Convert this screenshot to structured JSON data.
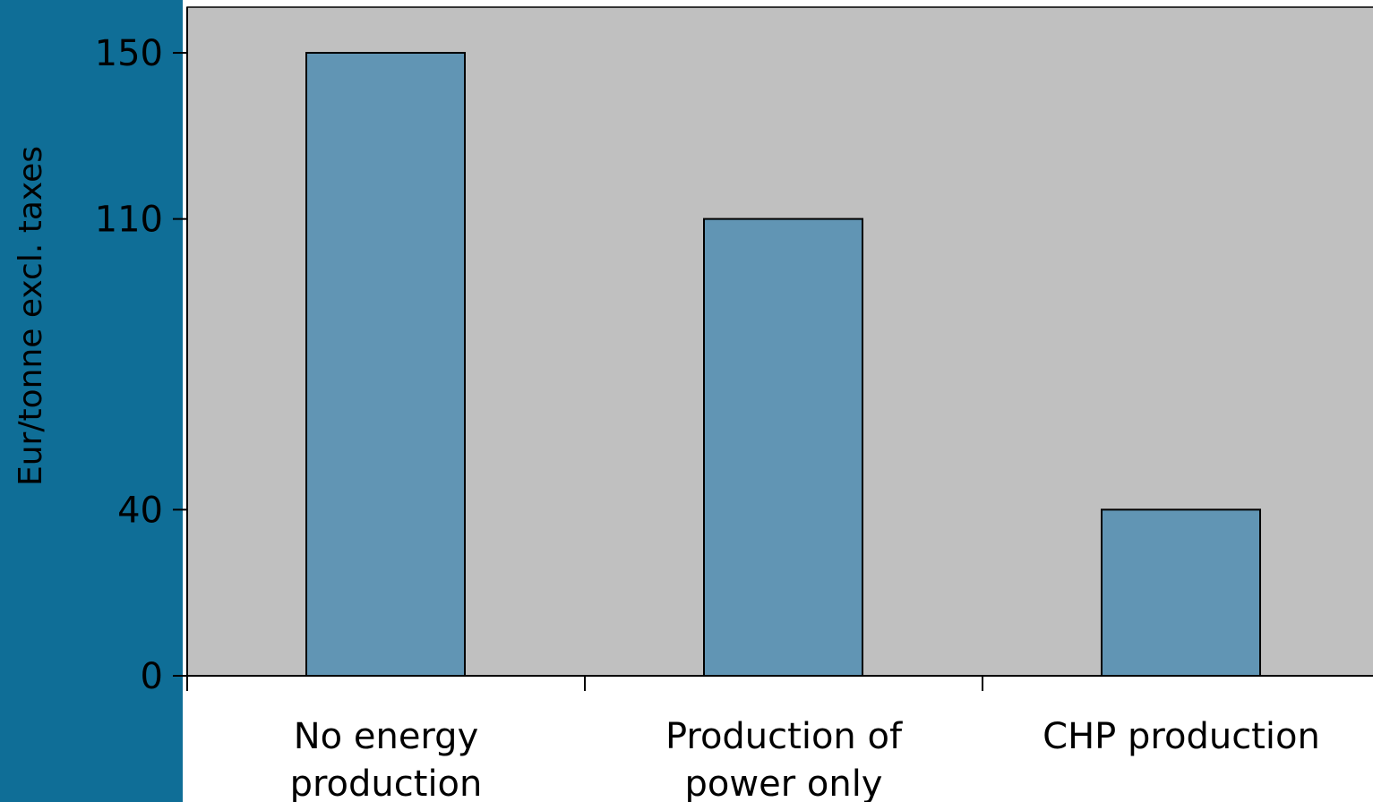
{
  "colors": {
    "side_band": "#0f6e97",
    "plot_bg": "#c0c0c0",
    "bar_fill": "#6195b4",
    "bar_stroke": "#000000",
    "axis": "#000000"
  },
  "chart_data": {
    "type": "bar",
    "title": "",
    "xlabel": "",
    "ylabel": "Eur/tonne excl. taxes",
    "categories": [
      [
        "No energy",
        "production"
      ],
      [
        "Production of",
        "power only"
      ],
      [
        "CHP production"
      ]
    ],
    "values": [
      150,
      110,
      40
    ],
    "yticks": [
      0,
      40,
      110,
      150
    ],
    "ylim": [
      0,
      161
    ],
    "grid": false,
    "legend": "none"
  }
}
